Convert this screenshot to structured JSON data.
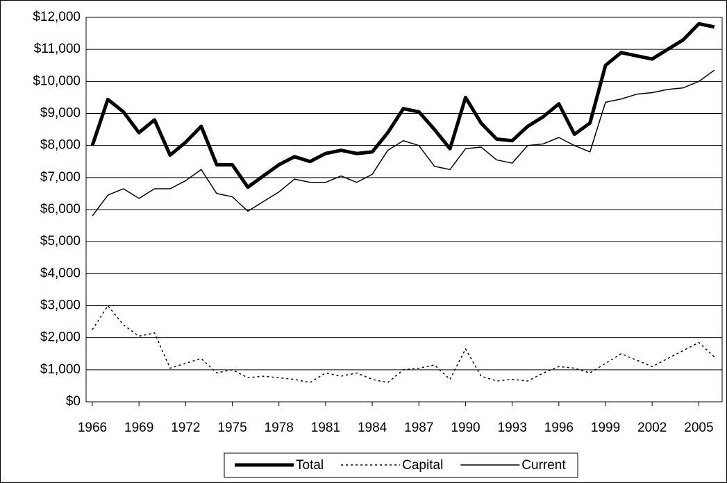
{
  "chart_data": {
    "type": "line",
    "x": [
      1966,
      1967,
      1968,
      1969,
      1970,
      1971,
      1972,
      1973,
      1974,
      1975,
      1976,
      1977,
      1978,
      1979,
      1980,
      1981,
      1982,
      1983,
      1984,
      1985,
      1986,
      1987,
      1988,
      1989,
      1990,
      1991,
      1992,
      1993,
      1994,
      1995,
      1996,
      1997,
      1998,
      1999,
      2000,
      2001,
      2002,
      2003,
      2004,
      2005,
      2006
    ],
    "xlim": [
      1965.6,
      2006.5
    ],
    "xticks": [
      1966,
      1969,
      1972,
      1975,
      1978,
      1981,
      1984,
      1987,
      1990,
      1993,
      1996,
      1999,
      2002,
      2005
    ],
    "ylim": [
      0,
      12000
    ],
    "yticks": [
      {
        "value": 0,
        "label": "$0"
      },
      {
        "value": 1000,
        "label": "$1,000"
      },
      {
        "value": 2000,
        "label": "$2,000"
      },
      {
        "value": 3000,
        "label": "$3,000"
      },
      {
        "value": 4000,
        "label": "$4,000"
      },
      {
        "value": 5000,
        "label": "$5,000"
      },
      {
        "value": 6000,
        "label": "$6,000"
      },
      {
        "value": 7000,
        "label": "$7,000"
      },
      {
        "value": 8000,
        "label": "$8,000"
      },
      {
        "value": 9000,
        "label": "$9,000"
      },
      {
        "value": 10000,
        "label": "$10,000"
      },
      {
        "value": 11000,
        "label": "$11,000"
      },
      {
        "value": 12000,
        "label": "$12,000"
      }
    ],
    "grid": true,
    "legend": "bottom",
    "series": [
      {
        "name": "Total",
        "color": "#000000",
        "line_width": 5,
        "line_style": "solid",
        "values": [
          8000,
          9440,
          9050,
          8400,
          8800,
          7700,
          8100,
          8600,
          7400,
          7400,
          6700,
          7050,
          7400,
          7650,
          7500,
          7750,
          7850,
          7750,
          7800,
          8400,
          9150,
          9050,
          8500,
          7900,
          9500,
          8700,
          8200,
          8150,
          8600,
          8900,
          9300,
          8350,
          8700,
          10500,
          10900,
          10800,
          10700,
          11000,
          11300,
          11800,
          11700
        ]
      },
      {
        "name": "Capital",
        "color": "#000000",
        "line_width": 1.5,
        "line_style": "dotted",
        "values": [
          2250,
          3000,
          2400,
          2050,
          2150,
          1050,
          1200,
          1350,
          900,
          1000,
          750,
          800,
          750,
          700,
          600,
          900,
          800,
          900,
          700,
          600,
          1000,
          1050,
          1150,
          700,
          1650,
          800,
          650,
          700,
          650,
          900,
          1100,
          1050,
          900,
          1200,
          1500,
          1300,
          1100,
          1350,
          1600,
          1850,
          1400
        ]
      },
      {
        "name": "Current",
        "color": "#000000",
        "line_width": 1.5,
        "line_style": "solid",
        "values": [
          5800,
          6450,
          6650,
          6350,
          6650,
          6650,
          6900,
          7250,
          6500,
          6400,
          5950,
          6250,
          6550,
          6950,
          6850,
          6850,
          7050,
          6850,
          7100,
          7850,
          8150,
          8000,
          7350,
          7250,
          7900,
          7950,
          7550,
          7450,
          8000,
          8050,
          8250,
          8000,
          7800,
          9350,
          9450,
          9600,
          9650,
          9750,
          9800,
          10000,
          10350
        ]
      }
    ]
  }
}
